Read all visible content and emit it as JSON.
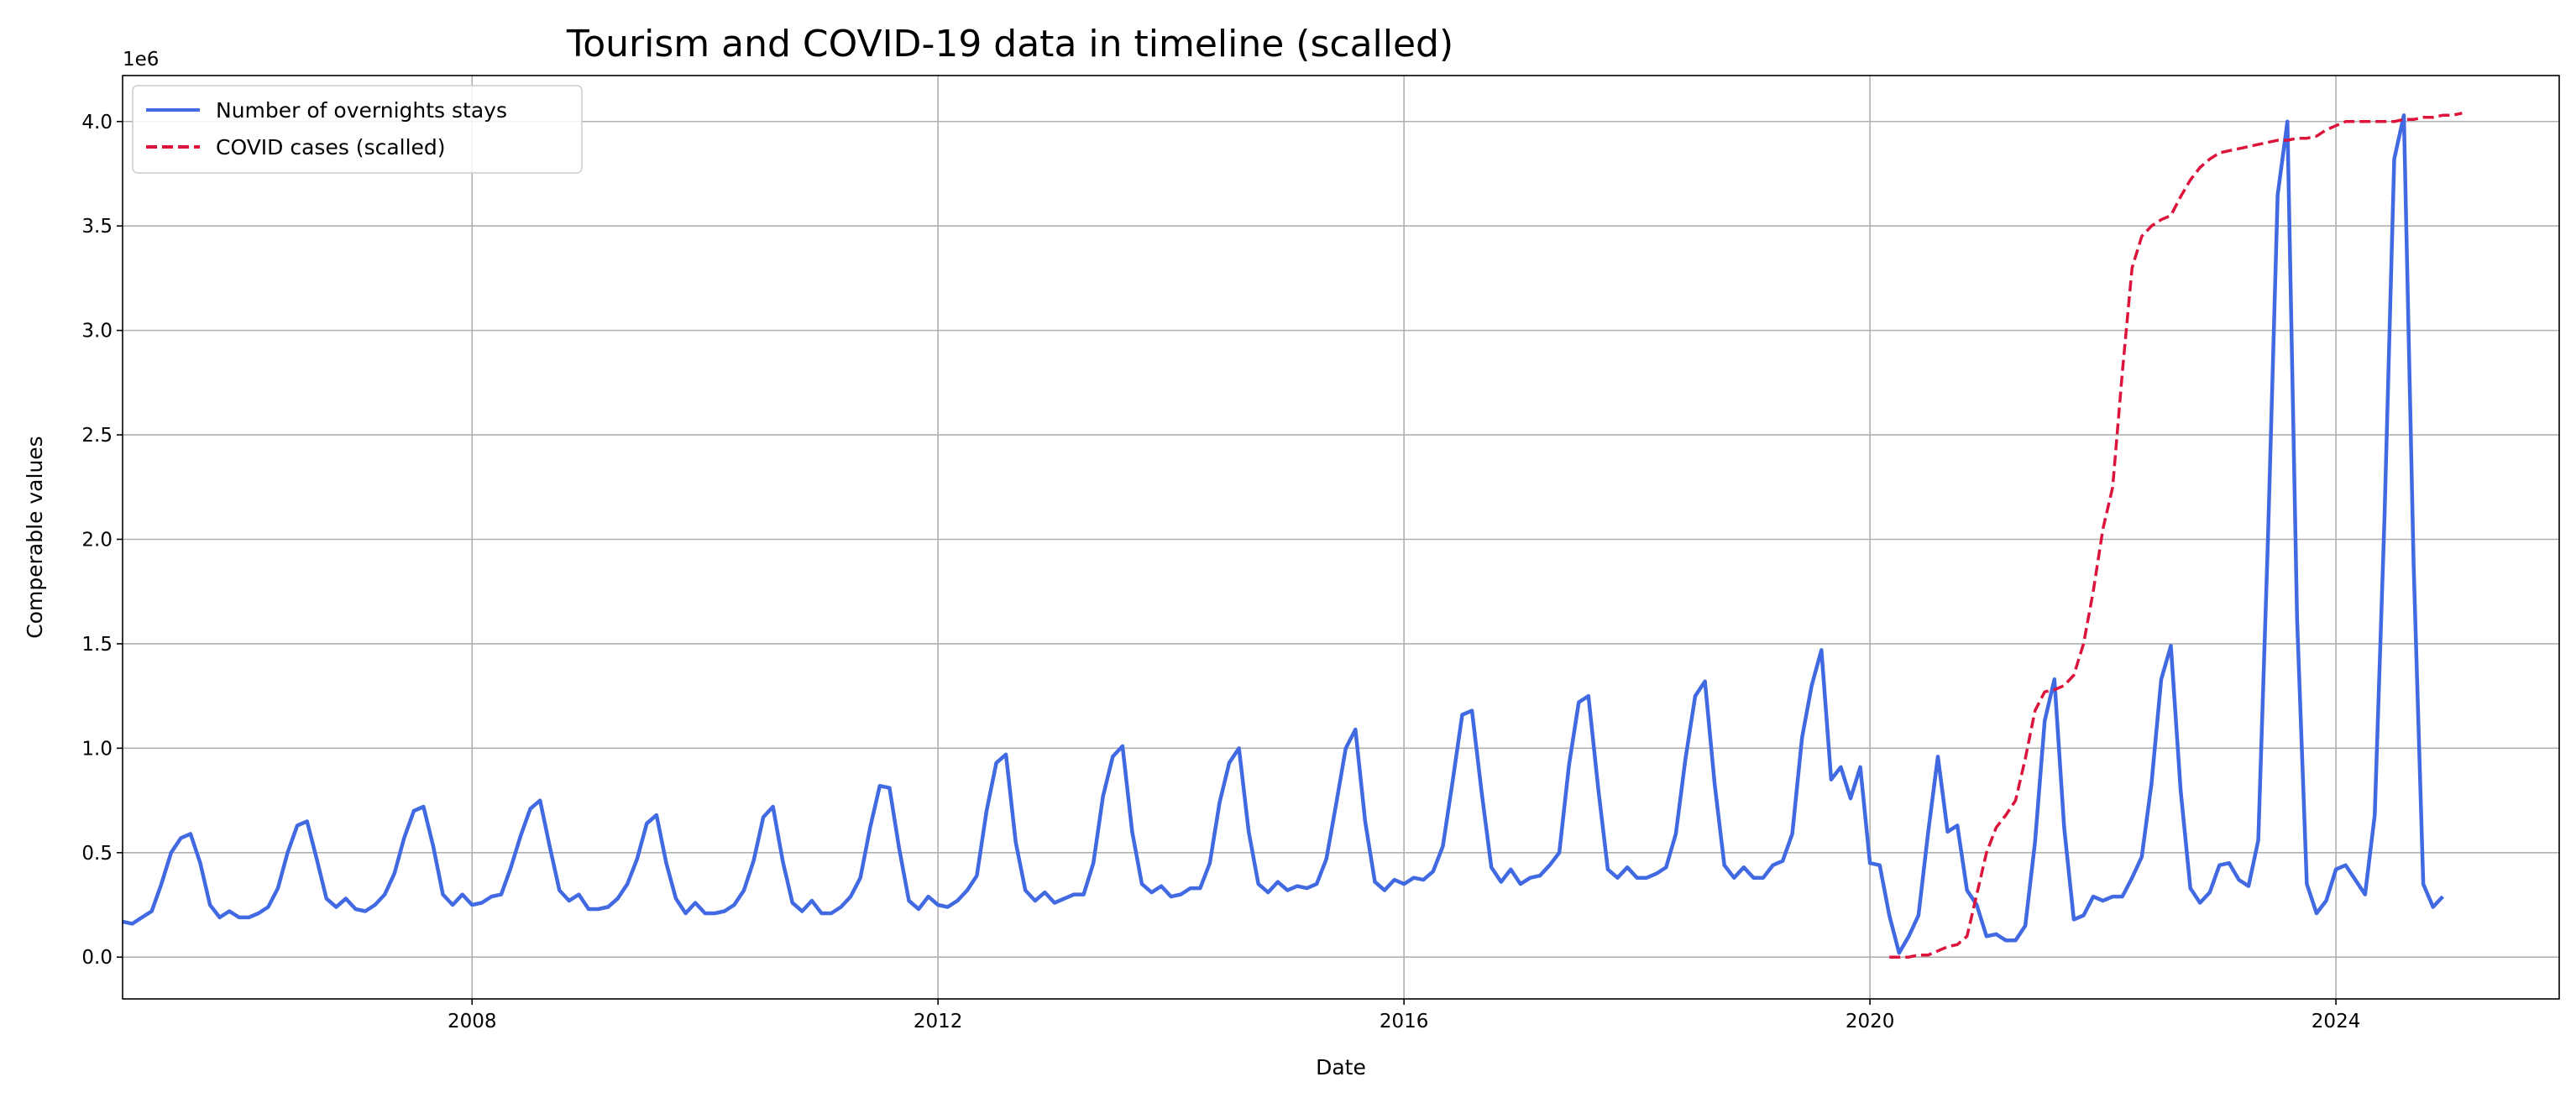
{
  "chart_data": {
    "type": "line",
    "title": "Tourism and COVID-19 data in timeline (scalled)",
    "xlabel": "Date",
    "ylabel": "Comperable values",
    "y_offset_text": "1e6",
    "xlim": [
      "2005-01-01",
      "2025-12-01"
    ],
    "ylim": [
      -0.2,
      4.22
    ],
    "x_ticks": [
      {
        "date": "2008-01-01",
        "label": "2008"
      },
      {
        "date": "2012-01-01",
        "label": "2012"
      },
      {
        "date": "2016-01-01",
        "label": "2016"
      },
      {
        "date": "2020-01-01",
        "label": "2020"
      },
      {
        "date": "2024-01-01",
        "label": "2024"
      }
    ],
    "y_ticks": [
      {
        "value": 0.0,
        "label": "0.0"
      },
      {
        "value": 0.5,
        "label": "0.5"
      },
      {
        "value": 1.0,
        "label": "1.0"
      },
      {
        "value": 1.5,
        "label": "1.5"
      },
      {
        "value": 2.0,
        "label": "2.0"
      },
      {
        "value": 2.5,
        "label": "2.5"
      },
      {
        "value": 3.0,
        "label": "3.0"
      },
      {
        "value": 3.5,
        "label": "3.5"
      },
      {
        "value": 4.0,
        "label": "4.0"
      }
    ],
    "grid": true,
    "legend_position": "upper left",
    "series": [
      {
        "name": "Number of overnights stays",
        "color": "#4169e1",
        "style": "solid",
        "start": "2005-01",
        "values": [
          0.17,
          0.16,
          0.19,
          0.22,
          0.35,
          0.5,
          0.57,
          0.59,
          0.45,
          0.25,
          0.19,
          0.22,
          0.19,
          0.19,
          0.21,
          0.24,
          0.33,
          0.5,
          0.63,
          0.65,
          0.47,
          0.28,
          0.24,
          0.28,
          0.23,
          0.22,
          0.25,
          0.3,
          0.4,
          0.57,
          0.7,
          0.72,
          0.53,
          0.3,
          0.25,
          0.3,
          0.25,
          0.26,
          0.29,
          0.3,
          0.43,
          0.58,
          0.71,
          0.75,
          0.53,
          0.32,
          0.27,
          0.3,
          0.23,
          0.23,
          0.24,
          0.28,
          0.35,
          0.47,
          0.64,
          0.68,
          0.45,
          0.28,
          0.21,
          0.26,
          0.21,
          0.21,
          0.22,
          0.25,
          0.32,
          0.46,
          0.67,
          0.72,
          0.46,
          0.26,
          0.22,
          0.27,
          0.21,
          0.21,
          0.24,
          0.29,
          0.38,
          0.62,
          0.82,
          0.81,
          0.52,
          0.27,
          0.23,
          0.29,
          0.25,
          0.24,
          0.27,
          0.32,
          0.39,
          0.7,
          0.93,
          0.97,
          0.55,
          0.32,
          0.27,
          0.31,
          0.26,
          0.28,
          0.3,
          0.3,
          0.45,
          0.77,
          0.96,
          1.01,
          0.6,
          0.35,
          0.31,
          0.34,
          0.29,
          0.3,
          0.33,
          0.33,
          0.45,
          0.74,
          0.93,
          1.0,
          0.6,
          0.35,
          0.31,
          0.36,
          0.32,
          0.34,
          0.33,
          0.35,
          0.47,
          0.73,
          1.0,
          1.09,
          0.65,
          0.36,
          0.32,
          0.37,
          0.35,
          0.38,
          0.37,
          0.41,
          0.53,
          0.84,
          1.16,
          1.18,
          0.79,
          0.43,
          0.36,
          0.42,
          0.35,
          0.38,
          0.39,
          0.44,
          0.5,
          0.92,
          1.22,
          1.25,
          0.81,
          0.42,
          0.38,
          0.43,
          0.38,
          0.38,
          0.4,
          0.43,
          0.59,
          0.95,
          1.25,
          1.32,
          0.83,
          0.44,
          0.38,
          0.43,
          0.38,
          0.38,
          0.44,
          0.46,
          0.59,
          1.05,
          1.3,
          1.47,
          0.85,
          0.91,
          0.76,
          0.91,
          0.45,
          0.44,
          0.2,
          0.02,
          0.1,
          0.2,
          0.6,
          0.96,
          0.6,
          0.63,
          0.32,
          0.25,
          0.1,
          0.11,
          0.08,
          0.08,
          0.15,
          0.55,
          1.13,
          1.33,
          0.62,
          0.18,
          0.2,
          0.29,
          0.27,
          0.29,
          0.29,
          0.38,
          0.48,
          0.83,
          1.33,
          1.49,
          0.8,
          0.33,
          0.26,
          0.31,
          0.44,
          0.45,
          0.37,
          0.34,
          0.56,
          2.0,
          3.65,
          4.0,
          1.62,
          0.35,
          0.21,
          0.27,
          0.42,
          0.44,
          0.37,
          0.3,
          0.68,
          2.1,
          3.82,
          4.03,
          1.88,
          0.35,
          0.24,
          0.29
        ]
      },
      {
        "name": "COVID cases (scalled)",
        "color": "#dc143c",
        "style": "dashed",
        "start": "2020-03",
        "values": [
          0.0,
          0.0,
          0.0,
          0.01,
          0.01,
          0.03,
          0.05,
          0.06,
          0.1,
          0.3,
          0.5,
          0.62,
          0.68,
          0.75,
          0.95,
          1.18,
          1.27,
          1.28,
          1.3,
          1.35,
          1.5,
          1.75,
          2.05,
          2.25,
          2.8,
          3.3,
          3.45,
          3.5,
          3.53,
          3.55,
          3.64,
          3.72,
          3.78,
          3.82,
          3.85,
          3.86,
          3.87,
          3.88,
          3.89,
          3.9,
          3.91,
          3.91,
          3.92,
          3.92,
          3.93,
          3.96,
          3.98,
          4.0,
          4.0,
          4.0,
          4.0,
          4.0,
          4.0,
          4.01,
          4.01,
          4.02,
          4.02,
          4.03,
          4.03,
          4.04
        ]
      }
    ]
  }
}
